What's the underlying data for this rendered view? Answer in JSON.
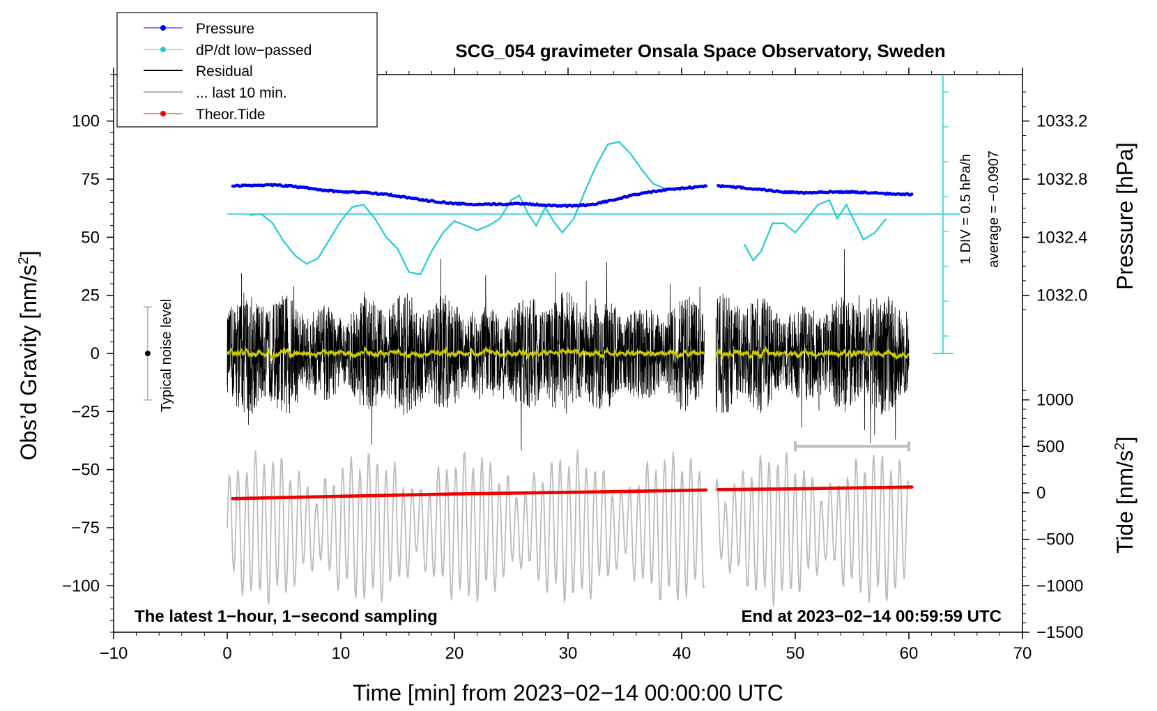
{
  "chart_data": {
    "type": "line",
    "title": "SCG_054 gravimeter Onsala Space Observatory, Sweden",
    "xlabel": "Time [min] from 2023−02−14 00:00:00 UTC",
    "ylabel_main": "Obs’d Gravity [nm/s",
    "ylabel_main_sup": "2",
    "ylabel_main_end": "]",
    "ylabel_pressure": "Pressure [hPa]",
    "ylabel_tide": "Tide [nm/s",
    "ylabel_tide_sup": "2",
    "ylabel_tide_end": "]",
    "xlim": [
      -10,
      70
    ],
    "ylim": [
      -120,
      120
    ],
    "x_ticks": [
      -10,
      0,
      10,
      20,
      30,
      40,
      50,
      60,
      70
    ],
    "x_tick_labels": [
      "−10",
      "0",
      "10",
      "20",
      "30",
      "40",
      "50",
      "60",
      "70"
    ],
    "y_ticks": [
      100,
      75,
      50,
      25,
      0,
      -25,
      -50,
      -75,
      -100
    ],
    "y_tick_labels": [
      "100",
      "75",
      "50",
      "25",
      "0",
      "−25",
      "−50",
      "−75",
      "−100"
    ],
    "pressure_ticks": [
      1033.2,
      1032.8,
      1032.4,
      1032.0
    ],
    "pressure_tick_labels": [
      "1033.2",
      "1032.8",
      "1032.4",
      "1032.0"
    ],
    "pressure_map": {
      "hpa_at_gravity_0": 1031.6,
      "hpa_per_nm": 0.016
    },
    "tide_ticks": [
      1000,
      500,
      0,
      -500,
      -1000,
      -1500
    ],
    "tide_tick_labels": [
      "1000",
      "500",
      "0",
      "−500",
      "−1000",
      "−1500"
    ],
    "tide_map": {
      "gravity_at_tide_0": -60,
      "nm_per_tide_unit": 0.04
    },
    "legend": [
      {
        "label": "Pressure",
        "color": "#0000ee",
        "marker": "dot"
      },
      {
        "label": "dP/dt low−passed",
        "color": "#22cccc",
        "marker": "dot"
      },
      {
        "label": "Residual",
        "color": "#000000",
        "marker": "line"
      },
      {
        "label": "... last 10 min.",
        "color": "#bbbbbb",
        "marker": "line"
      },
      {
        "label": "Theor.Tide",
        "color": "#ee0000",
        "marker": "dot"
      }
    ],
    "pressure_series": {
      "name": "Pressure",
      "color": "#0000ee",
      "gap": [
        42.2,
        43.2
      ],
      "x": [
        0.5,
        2,
        4,
        6,
        8,
        10,
        12,
        14,
        16,
        18,
        20,
        22,
        24,
        26,
        28,
        30,
        32,
        34,
        36,
        38,
        40,
        42,
        43.2,
        45,
        47,
        49,
        51,
        53,
        55,
        57,
        59,
        60.3
      ],
      "y": [
        72,
        72.3,
        72.5,
        71.8,
        70.5,
        69.5,
        69.3,
        68.5,
        67,
        65.5,
        64.5,
        64,
        64.2,
        64.5,
        63.8,
        63.5,
        64,
        66,
        68.5,
        70,
        71,
        72,
        72,
        71.5,
        70.5,
        69.5,
        69,
        69.5,
        69.5,
        69,
        68.5,
        68.5
      ]
    },
    "dpdt_series": {
      "name": "dP/dt low−passed",
      "color": "#22cccc",
      "zero_line": 60,
      "label_scale": "1 DIV = 0.5 hPa/h",
      "label_avg": "average = −0.0907",
      "segment1_x": [
        2,
        3,
        4,
        5,
        6,
        7,
        8,
        9,
        10,
        11,
        12,
        13,
        14,
        15,
        16,
        17,
        18,
        19,
        20,
        21,
        22,
        23,
        24,
        25,
        25.7,
        26.5,
        27.2,
        28,
        28.7,
        29.5,
        30.5,
        31.5,
        32.5,
        33.5,
        34.5,
        35.5,
        36.5,
        37.5,
        38.5,
        39.3
      ],
      "segment1_y": [
        59.5,
        60,
        56,
        48,
        42,
        38.5,
        41,
        49,
        57,
        63,
        64,
        58,
        50,
        45,
        35,
        34,
        44,
        52,
        57,
        55,
        53,
        55,
        58,
        66,
        68,
        60,
        55,
        63,
        57,
        52,
        58,
        70,
        81,
        90,
        91,
        86,
        79,
        73,
        71,
        71
      ],
      "segment2_x": [
        45.5,
        46.3,
        47,
        48,
        49,
        50,
        51,
        52,
        53,
        53.7,
        54.5,
        55.3,
        56,
        57,
        58
      ],
      "segment2_y": [
        47,
        40,
        44,
        56,
        56,
        52,
        58,
        64,
        66,
        58,
        64,
        56,
        49,
        52,
        58
      ]
    },
    "residual_series": {
      "name": "Residual",
      "color": "#000000",
      "smooth_color": "#cccc00",
      "gap": [
        42,
        43
      ],
      "xlim": [
        0,
        60
      ],
      "typical_amplitude": 20,
      "max_amplitude": 45
    },
    "last10_series": {
      "name": "... last 10 min.",
      "color": "#bbbbbb",
      "note": "last 10 minutes, upsampled and overlaid below the tide",
      "offset": -75,
      "amplitude": 30,
      "bracket_x": [
        50,
        60
      ],
      "bracket_y": -40
    },
    "tide_series": {
      "name": "Theor.Tide",
      "color": "#ee0000",
      "gap": [
        42.2,
        43.2
      ],
      "x": [
        0.5,
        10,
        20,
        30,
        40,
        42,
        43.2,
        50,
        60.3
      ],
      "y": [
        -62.5,
        -61.5,
        -60.5,
        -59.8,
        -59.0,
        -58.8,
        -58.6,
        -58.3,
        -57.5
      ]
    },
    "noise_bar": {
      "label": "Typical noise level",
      "x": -7,
      "half_range": 20
    },
    "corner_left": "The latest 1−hour, 1−second sampling",
    "corner_right": "End at 2023−02−14 00:59:59 UTC"
  }
}
